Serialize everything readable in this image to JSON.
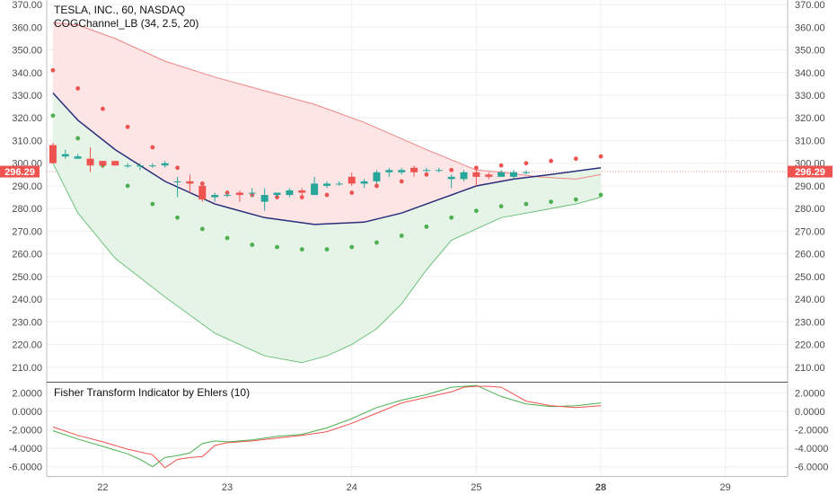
{
  "colors": {
    "up": "#26a69a",
    "down": "#ef5350",
    "upper_fill": "#fde5e6",
    "lower_fill": "#e5f4e6",
    "upper_line": "#f08585",
    "lower_line": "#6cc17c",
    "upper_dots": "#ef5350",
    "lower_dots": "#4caf50",
    "mid_line": "#2a2e7a",
    "fisher_green": "#4caf50",
    "fisher_red": "#ef5350",
    "grid": "#efefef",
    "axis": "#bdbdbd",
    "price_tag": "#ef5350"
  },
  "chart_data": [
    {
      "type": "candlestick",
      "title": "TESLA, INC., 60, NASDAQ",
      "indicator": "COGChannel_LB (34, 2.5, 20)",
      "last_price_label": "296.29",
      "last_price": 296.29,
      "y_ticks": [
        "210.00",
        "220.00",
        "230.00",
        "240.00",
        "250.00",
        "260.00",
        "270.00",
        "280.00",
        "290.00",
        "300.00",
        "310.00",
        "320.00",
        "330.00",
        "340.00",
        "350.00",
        "360.00",
        "370.00"
      ],
      "ylim": [
        204,
        372
      ],
      "x_ticks": [
        "22",
        "23",
        "24",
        "25",
        "28",
        "29"
      ],
      "x_tick_pos": [
        9,
        19,
        29,
        39,
        49,
        59
      ],
      "x_tick_bold": [
        false,
        false,
        false,
        false,
        true,
        false
      ],
      "xlim": [
        4.5,
        64
      ],
      "grid": true,
      "candles": [
        [
          5,
          308,
          309,
          300,
          300
        ],
        [
          6,
          303,
          306,
          302,
          304
        ],
        [
          7,
          302,
          304,
          302,
          303
        ],
        [
          8,
          302,
          307,
          296,
          299
        ],
        [
          9,
          301,
          301,
          298,
          299
        ],
        [
          10,
          301,
          301,
          299,
          299
        ],
        [
          11,
          299,
          300,
          298,
          299
        ],
        [
          12,
          299,
          300,
          297,
          299
        ],
        [
          13,
          299,
          300,
          298,
          299
        ],
        [
          14,
          299,
          301,
          298,
          300
        ],
        [
          15,
          292,
          294,
          285,
          292
        ],
        [
          16,
          292,
          295,
          287,
          291
        ],
        [
          17,
          290,
          292,
          283,
          284
        ],
        [
          18,
          285,
          287,
          283,
          286
        ],
        [
          19,
          286,
          287,
          285,
          286
        ],
        [
          20,
          287,
          288,
          283,
          286
        ],
        [
          21,
          287,
          289,
          285,
          287
        ],
        [
          22,
          283,
          289,
          279,
          286
        ],
        [
          23,
          286,
          287,
          285,
          287
        ],
        [
          24,
          286,
          289,
          285,
          288
        ],
        [
          25,
          288,
          289,
          286,
          287
        ],
        [
          26,
          286,
          294,
          286,
          291
        ],
        [
          27,
          290,
          292,
          289,
          291
        ],
        [
          28,
          291,
          292,
          290,
          291
        ],
        [
          29,
          294,
          296,
          290,
          291
        ],
        [
          30,
          291,
          293,
          289,
          292
        ],
        [
          31,
          292,
          297,
          291,
          296
        ],
        [
          32,
          296,
          298,
          294,
          297
        ],
        [
          33,
          296,
          298,
          295,
          297
        ],
        [
          34,
          298,
          299,
          294,
          296
        ],
        [
          35,
          297,
          298,
          296,
          297
        ],
        [
          36,
          297,
          298,
          296,
          297
        ],
        [
          37,
          293,
          295,
          289,
          294
        ],
        [
          38,
          293,
          297,
          292,
          296
        ],
        [
          39,
          296,
          297,
          290,
          294
        ],
        [
          40,
          295,
          296,
          293,
          294
        ],
        [
          41,
          294,
          297,
          294,
          296
        ],
        [
          42,
          294,
          297,
          293,
          296
        ],
        [
          43,
          296,
          297,
          295,
          296
        ]
      ],
      "upper_band_x": [
        5,
        7,
        10,
        14,
        18,
        22,
        26,
        30,
        35,
        39,
        41,
        44,
        47,
        49
      ],
      "upper_band": [
        362,
        361,
        355,
        345,
        338,
        332,
        326,
        318,
        306,
        297,
        296,
        294,
        293,
        295
      ],
      "lower_band_x": [
        5,
        7,
        10,
        14,
        18,
        22,
        25,
        27,
        29,
        31,
        33,
        35,
        37,
        39,
        41,
        44,
        47,
        49
      ],
      "lower_band": [
        300,
        278,
        258,
        241,
        225,
        215,
        212,
        215,
        220,
        227,
        238,
        253,
        266,
        271,
        276,
        279,
        282,
        285
      ],
      "mid_line_x": [
        5,
        7,
        10,
        14,
        18,
        22,
        26,
        30,
        33,
        36,
        39,
        42,
        45,
        49
      ],
      "mid_line": [
        331,
        319,
        306,
        292,
        282,
        276,
        273,
        274,
        278,
        284,
        290,
        293,
        295,
        298
      ],
      "upper_dots_x": [
        5,
        7,
        9,
        11,
        13,
        15,
        17,
        19,
        21,
        23,
        25,
        27,
        29,
        31,
        33,
        35,
        37,
        39,
        41,
        43,
        45,
        47,
        49
      ],
      "upper_dots": [
        341,
        333,
        324,
        316,
        307,
        298,
        291,
        287,
        286,
        285,
        285,
        286,
        287,
        290,
        292,
        295,
        297,
        298,
        299,
        300,
        301,
        302,
        303
      ],
      "lower_dots_x": [
        5,
        7,
        9,
        11,
        13,
        15,
        17,
        19,
        21,
        23,
        25,
        27,
        29,
        31,
        33,
        35,
        37,
        39,
        41,
        43,
        45,
        47,
        49
      ],
      "lower_dots": [
        321,
        311,
        299,
        290,
        282,
        276,
        271,
        267,
        264,
        263,
        262,
        262,
        263,
        265,
        268,
        272,
        276,
        279,
        281,
        282,
        283,
        284,
        286
      ]
    },
    {
      "type": "line",
      "title": "Fisher Transform Indicator by Ehlers (10)",
      "y_ticks": [
        "2.0000",
        "0.0000",
        "-2.0000",
        "-4.0000",
        "-6.0000"
      ],
      "ylim": [
        -7,
        3
      ],
      "series": [
        {
          "color": "fisher_green",
          "x": [
            5,
            7,
            9,
            11,
            12,
            13,
            14,
            15,
            16,
            17,
            18,
            19,
            21,
            23,
            25,
            27,
            29,
            31,
            33,
            35,
            37,
            38,
            39,
            41,
            43,
            45,
            47,
            49
          ],
          "y": [
            -2.1,
            -3.0,
            -3.8,
            -4.6,
            -5.2,
            -6.0,
            -5.0,
            -4.8,
            -4.5,
            -3.5,
            -3.2,
            -3.3,
            -3.1,
            -2.7,
            -2.5,
            -1.8,
            -0.8,
            0.4,
            1.2,
            1.8,
            2.6,
            2.7,
            2.8,
            1.6,
            0.8,
            0.5,
            0.6,
            0.9
          ]
        },
        {
          "color": "fisher_red",
          "x": [
            5,
            7,
            9,
            11,
            13,
            14,
            15,
            16,
            17,
            18,
            19,
            21,
            23,
            25,
            27,
            29,
            31,
            33,
            35,
            37,
            38,
            39,
            40,
            41,
            43,
            45,
            47,
            49
          ],
          "y": [
            -1.7,
            -2.6,
            -3.3,
            -4.1,
            -4.7,
            -6.1,
            -5.2,
            -5.0,
            -4.9,
            -3.7,
            -3.4,
            -3.2,
            -2.9,
            -2.6,
            -2.2,
            -1.3,
            -0.2,
            0.9,
            1.5,
            2.1,
            2.6,
            2.7,
            2.7,
            2.6,
            1.1,
            0.6,
            0.4,
            0.6
          ]
        }
      ]
    }
  ]
}
